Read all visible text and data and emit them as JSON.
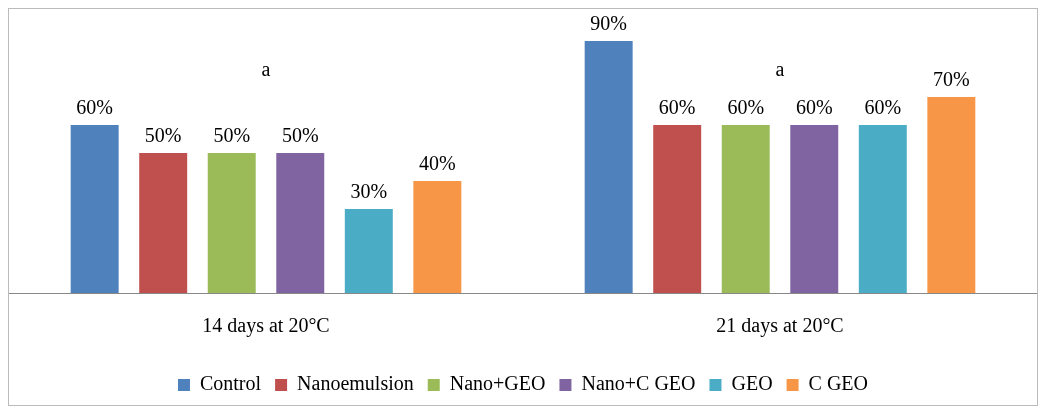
{
  "chart_data": {
    "type": "bar",
    "categories": [
      "14 days at 20°C",
      "21 days at 20°C"
    ],
    "series": [
      {
        "name": "Control",
        "color": "#4f81bd",
        "values": [
          60,
          90
        ],
        "value_labels": [
          "60%",
          "90%"
        ]
      },
      {
        "name": "Nanoemulsion",
        "color": "#c0504d",
        "values": [
          50,
          60
        ],
        "value_labels": [
          "50%",
          "60%"
        ]
      },
      {
        "name": "Nano+GEO",
        "color": "#9bbb59",
        "values": [
          50,
          60
        ],
        "value_labels": [
          "50%",
          "60%"
        ]
      },
      {
        "name": "Nano+C GEO",
        "color": "#8064a2",
        "values": [
          50,
          60
        ],
        "value_labels": [
          "50%",
          "60%"
        ]
      },
      {
        "name": "GEO",
        "color": "#4bacc6",
        "values": [
          30,
          60
        ],
        "value_labels": [
          "30%",
          "60%"
        ]
      },
      {
        "name": "C GEO",
        "color": "#f79646",
        "values": [
          40,
          70
        ],
        "value_labels": [
          "40%",
          "70%"
        ]
      }
    ],
    "annotations": [
      "a",
      "a"
    ],
    "legend": "bottom",
    "grid": false
  }
}
